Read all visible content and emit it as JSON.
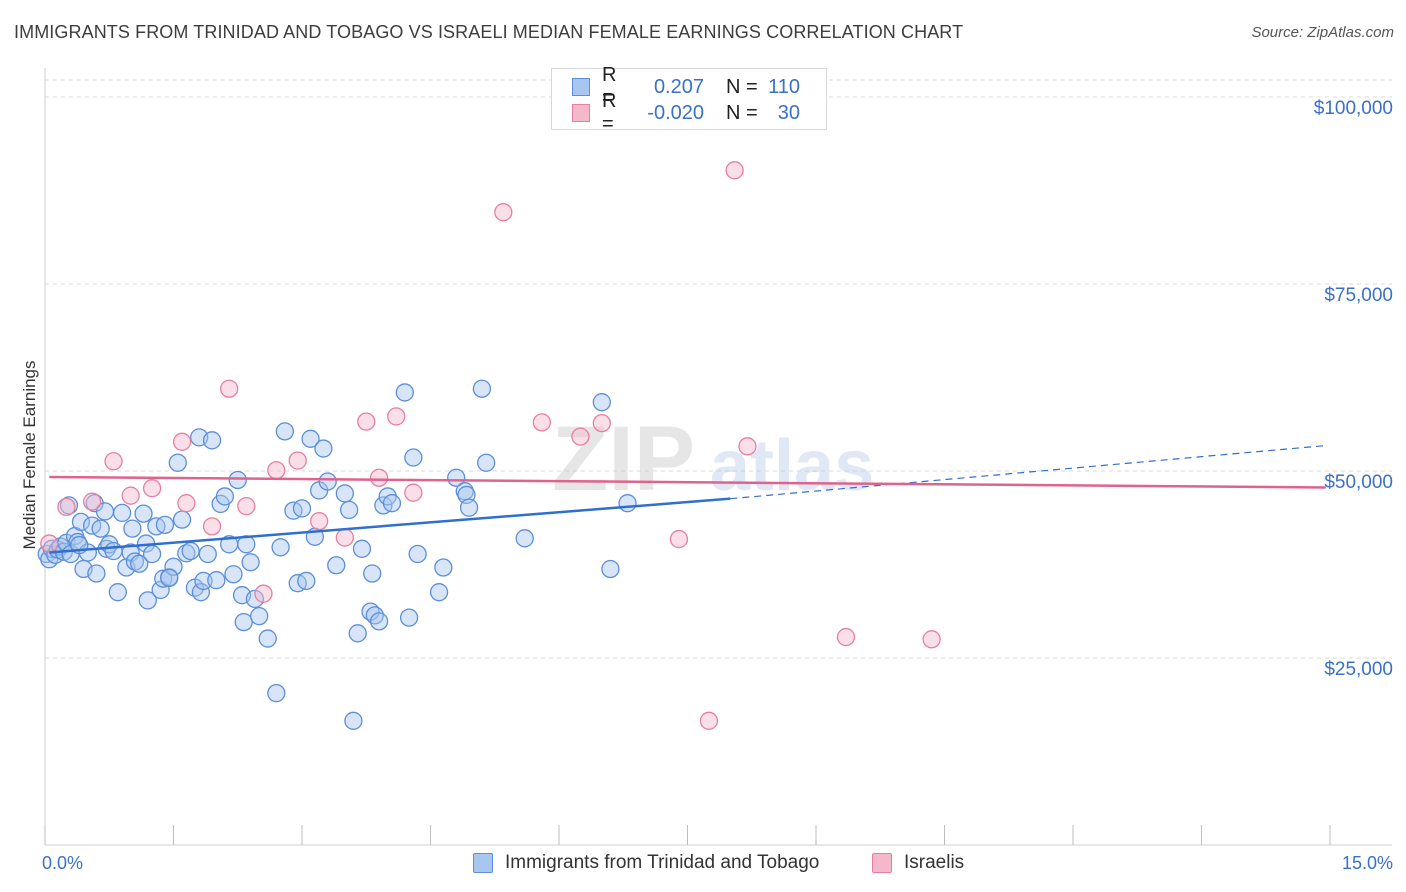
{
  "title": "IMMIGRANTS FROM TRINIDAD AND TOBAGO VS ISRAELI MEDIAN FEMALE EARNINGS CORRELATION CHART",
  "source": "Source: ZipAtlas.com",
  "colors": {
    "blue": "#5b8fd9",
    "blue_fill": "#a9c6f0",
    "blue_line": "#2f6fcf",
    "pink": "#e87fa1",
    "pink_fill": "#f5b8cb",
    "pink_line": "#e0628e",
    "axis_text": "#3a70c8",
    "grid": "#d9d9d9"
  },
  "legend": {
    "rows": [
      {
        "r_label": "R =",
        "r_value": "0.207",
        "n_label": "N =",
        "n_value": "110"
      },
      {
        "r_label": "R =",
        "r_value": "-0.020",
        "n_label": "N =",
        "n_value": "30"
      }
    ]
  },
  "bottom_legend": [
    "Immigrants from Trinidad and Tobago",
    "Israelis"
  ],
  "chart_data": {
    "type": "scatter",
    "title": "IMMIGRANTS FROM TRINIDAD AND TOBAGO VS ISRAELI MEDIAN FEMALE EARNINGS CORRELATION CHART",
    "xlabel": "",
    "ylabel": "Median Female Earnings",
    "xlim": [
      0,
      15
    ],
    "ylim": [
      0,
      105000
    ],
    "x_tick_labels": [
      "0.0%",
      "15.0%"
    ],
    "y_ticks": [
      25000,
      50000,
      75000,
      100000
    ],
    "y_tick_labels": [
      "$25,000",
      "$50,000",
      "$75,000",
      "$100,000"
    ],
    "grid": true,
    "series": [
      {
        "name": "Immigrants from Trinidad and Tobago",
        "R": 0.207,
        "N": 110,
        "trend": {
          "x_start": 0.05,
          "y_start": 39100,
          "x_solid_end": 8.0,
          "y_solid_end": 46300,
          "x_end": 14.95,
          "y_end": 53400
        },
        "points": [
          [
            0.02,
            38900
          ],
          [
            0.05,
            38200
          ],
          [
            0.08,
            39600
          ],
          [
            0.12,
            38800
          ],
          [
            0.15,
            39500
          ],
          [
            0.18,
            39900
          ],
          [
            0.22,
            39200
          ],
          [
            0.25,
            40400
          ],
          [
            0.28,
            45400
          ],
          [
            0.3,
            38900
          ],
          [
            0.35,
            41300
          ],
          [
            0.38,
            40500
          ],
          [
            0.42,
            43200
          ],
          [
            0.45,
            36900
          ],
          [
            0.5,
            39100
          ],
          [
            0.55,
            42700
          ],
          [
            0.58,
            45700
          ],
          [
            0.6,
            36300
          ],
          [
            0.65,
            42300
          ],
          [
            0.7,
            44600
          ],
          [
            0.72,
            39600
          ],
          [
            0.75,
            40200
          ],
          [
            0.8,
            39300
          ],
          [
            0.85,
            33800
          ],
          [
            0.9,
            44400
          ],
          [
            0.95,
            37100
          ],
          [
            1.0,
            39100
          ],
          [
            1.02,
            42300
          ],
          [
            1.05,
            37900
          ],
          [
            1.1,
            37600
          ],
          [
            1.15,
            44300
          ],
          [
            1.18,
            40300
          ],
          [
            1.2,
            32700
          ],
          [
            1.25,
            38900
          ],
          [
            1.3,
            42600
          ],
          [
            1.35,
            34100
          ],
          [
            1.38,
            35600
          ],
          [
            1.4,
            42800
          ],
          [
            1.45,
            35800
          ],
          [
            1.5,
            37200
          ],
          [
            1.55,
            51100
          ],
          [
            1.6,
            43500
          ],
          [
            1.65,
            39000
          ],
          [
            1.7,
            39300
          ],
          [
            1.75,
            34400
          ],
          [
            1.8,
            54500
          ],
          [
            1.82,
            33800
          ],
          [
            1.85,
            35300
          ],
          [
            1.9,
            38900
          ],
          [
            1.95,
            54100
          ],
          [
            2.0,
            35400
          ],
          [
            2.05,
            45600
          ],
          [
            2.1,
            46600
          ],
          [
            2.15,
            40200
          ],
          [
            2.2,
            36200
          ],
          [
            2.25,
            48800
          ],
          [
            2.3,
            33400
          ],
          [
            2.32,
            29800
          ],
          [
            2.35,
            40200
          ],
          [
            2.4,
            37800
          ],
          [
            2.45,
            32900
          ],
          [
            2.5,
            30600
          ],
          [
            2.6,
            27600
          ],
          [
            2.7,
            20300
          ],
          [
            2.75,
            39800
          ],
          [
            2.8,
            55300
          ],
          [
            2.9,
            44700
          ],
          [
            2.95,
            35000
          ],
          [
            3.0,
            45000
          ],
          [
            3.05,
            35300
          ],
          [
            3.1,
            54300
          ],
          [
            3.15,
            41200
          ],
          [
            3.2,
            47400
          ],
          [
            3.25,
            53000
          ],
          [
            3.3,
            48600
          ],
          [
            3.4,
            37400
          ],
          [
            3.5,
            47000
          ],
          [
            3.55,
            44800
          ],
          [
            3.6,
            16600
          ],
          [
            3.65,
            28300
          ],
          [
            3.7,
            39600
          ],
          [
            3.8,
            31200
          ],
          [
            3.82,
            36300
          ],
          [
            3.85,
            30700
          ],
          [
            3.9,
            29900
          ],
          [
            3.95,
            45400
          ],
          [
            4.0,
            46600
          ],
          [
            4.05,
            45700
          ],
          [
            4.2,
            60500
          ],
          [
            4.25,
            30400
          ],
          [
            4.3,
            51800
          ],
          [
            4.35,
            38900
          ],
          [
            4.6,
            33800
          ],
          [
            4.65,
            37100
          ],
          [
            4.8,
            49100
          ],
          [
            4.9,
            47300
          ],
          [
            4.92,
            46800
          ],
          [
            4.95,
            45100
          ],
          [
            5.1,
            61000
          ],
          [
            5.15,
            51100
          ],
          [
            5.6,
            41000
          ],
          [
            6.5,
            59200
          ],
          [
            6.6,
            36900
          ],
          [
            6.8,
            45700
          ],
          [
            1.45,
            35700
          ],
          [
            0.4,
            40100
          ]
        ]
      },
      {
        "name": "Israelis",
        "R": -0.02,
        "N": 30,
        "trend": {
          "x_start": 0.05,
          "y_start": 49200,
          "x_end": 14.95,
          "y_end": 47800
        },
        "points": [
          [
            0.05,
            40300
          ],
          [
            0.25,
            45200
          ],
          [
            0.55,
            45900
          ],
          [
            0.8,
            51300
          ],
          [
            1.0,
            46700
          ],
          [
            1.25,
            47700
          ],
          [
            1.6,
            53900
          ],
          [
            1.65,
            45700
          ],
          [
            1.95,
            42600
          ],
          [
            2.15,
            61000
          ],
          [
            2.35,
            45300
          ],
          [
            2.55,
            33600
          ],
          [
            2.7,
            50100
          ],
          [
            2.95,
            51400
          ],
          [
            3.2,
            43300
          ],
          [
            3.5,
            41100
          ],
          [
            3.75,
            56600
          ],
          [
            3.9,
            49100
          ],
          [
            4.1,
            57300
          ],
          [
            4.3,
            47100
          ],
          [
            5.35,
            84600
          ],
          [
            5.8,
            56500
          ],
          [
            6.25,
            54600
          ],
          [
            6.5,
            56400
          ],
          [
            7.4,
            40900
          ],
          [
            7.75,
            16600
          ],
          [
            8.05,
            90200
          ],
          [
            8.2,
            53300
          ],
          [
            9.35,
            27800
          ],
          [
            10.35,
            27500
          ]
        ]
      }
    ]
  }
}
